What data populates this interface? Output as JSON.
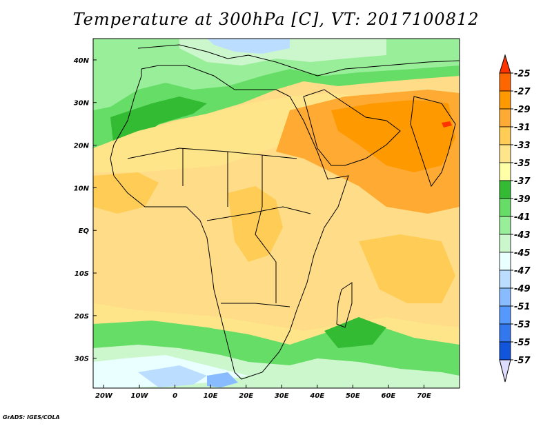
{
  "title": "Temperature at 300hPa [C], VT: 2017100812",
  "footer": "GrADS: IGES/COLA",
  "map": {
    "projection": "lat-lon",
    "lon_range": [
      -23,
      80
    ],
    "lat_range": [
      -37,
      45
    ],
    "lon_ticks": [
      {
        "value": -20,
        "label": "20W"
      },
      {
        "value": -10,
        "label": "10W"
      },
      {
        "value": 0,
        "label": "0"
      },
      {
        "value": 10,
        "label": "10E"
      },
      {
        "value": 20,
        "label": "20E"
      },
      {
        "value": 30,
        "label": "30E"
      },
      {
        "value": 40,
        "label": "40E"
      },
      {
        "value": 50,
        "label": "50E"
      },
      {
        "value": 60,
        "label": "60E"
      },
      {
        "value": 70,
        "label": "70E"
      }
    ],
    "lat_ticks": [
      {
        "value": 40,
        "label": "40N"
      },
      {
        "value": 30,
        "label": "30N"
      },
      {
        "value": 20,
        "label": "20N"
      },
      {
        "value": 10,
        "label": "10N"
      },
      {
        "value": 0,
        "label": "EQ"
      },
      {
        "value": -10,
        "label": "10S"
      },
      {
        "value": -20,
        "label": "20S"
      },
      {
        "value": -30,
        "label": "30S"
      }
    ]
  },
  "colorbar": {
    "levels": [
      "-25",
      "-27",
      "-29",
      "-31",
      "-33",
      "-35",
      "-37",
      "-39",
      "-41",
      "-43",
      "-45",
      "-47",
      "-49",
      "-51",
      "-53",
      "-55",
      "-57"
    ],
    "colors": [
      "#ff3300",
      "#ff6600",
      "#ff9900",
      "#ffaa33",
      "#ffcc55",
      "#ffe58a",
      "#ffffa8",
      "#33bb33",
      "#66dd66",
      "#99ee99",
      "#ccf7cc",
      "#eaffff",
      "#bbddff",
      "#88bbff",
      "#5599ff",
      "#3377ee",
      "#1155dd",
      "#003399",
      "#000066"
    ]
  },
  "legend_fills": {
    "sea_shade": "#ffdd88",
    "land_line": "#000000"
  }
}
